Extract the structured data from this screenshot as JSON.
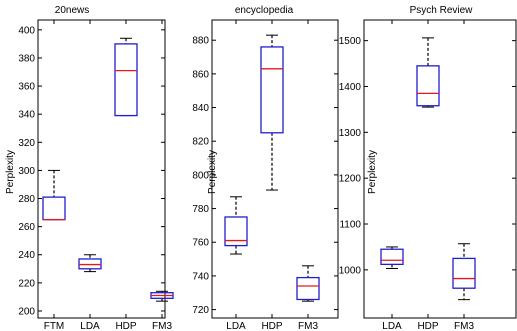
{
  "chart_data": [
    {
      "type": "box",
      "title": "20news",
      "ylabel": "Perplexity",
      "ylim": [
        195,
        407
      ],
      "yticks": [
        200,
        220,
        240,
        260,
        280,
        300,
        320,
        340,
        360,
        380,
        400
      ],
      "categories": [
        "FTM",
        "LDA",
        "HDP",
        "FM3"
      ],
      "boxes": [
        {
          "label": "FTM",
          "min": 265,
          "q1": 265,
          "median": 265,
          "q3": 281,
          "max": 300
        },
        {
          "label": "LDA",
          "min": 228,
          "q1": 230,
          "median": 233,
          "q3": 237,
          "max": 240
        },
        {
          "label": "HDP",
          "min": 339,
          "q1": 339,
          "median": 371,
          "q3": 390,
          "max": 394
        },
        {
          "label": "FM3",
          "min": 207,
          "q1": 209,
          "median": 211,
          "q3": 213,
          "max": 214
        }
      ]
    },
    {
      "type": "box",
      "title": "encyclopedia",
      "ylabel": "Perplexity",
      "ylim": [
        715,
        892
      ],
      "yticks": [
        720,
        740,
        760,
        780,
        800,
        820,
        840,
        860,
        880
      ],
      "categories": [
        "LDA",
        "HDP",
        "FM3"
      ],
      "boxes": [
        {
          "label": "LDA",
          "min": 753,
          "q1": 758,
          "median": 761,
          "q3": 775,
          "max": 787
        },
        {
          "label": "HDP",
          "min": 791,
          "q1": 825,
          "median": 863,
          "q3": 876,
          "max": 883
        },
        {
          "label": "FM3",
          "min": 725,
          "q1": 726,
          "median": 734,
          "q3": 739,
          "max": 746
        }
      ]
    },
    {
      "type": "box",
      "title": "Psych Review",
      "ylabel": "Perplexity",
      "ylim": [
        895,
        1545
      ],
      "yticks": [
        1000,
        1100,
        1200,
        1300,
        1400,
        1500
      ],
      "categories": [
        "LDA",
        "HDP",
        "FM3"
      ],
      "boxes": [
        {
          "label": "LDA",
          "min": 1003,
          "q1": 1012,
          "median": 1021,
          "q3": 1045,
          "max": 1050
        },
        {
          "label": "HDP",
          "min": 1355,
          "q1": 1358,
          "median": 1385,
          "q3": 1445,
          "max": 1506
        },
        {
          "label": "FM3",
          "min": 935,
          "q1": 960,
          "median": 981,
          "q3": 1025,
          "max": 1057
        }
      ]
    }
  ],
  "colors": {
    "box": "#1f1fcf",
    "median": "#e31a1c",
    "whisker": "#000000",
    "axis": "#000000"
  }
}
